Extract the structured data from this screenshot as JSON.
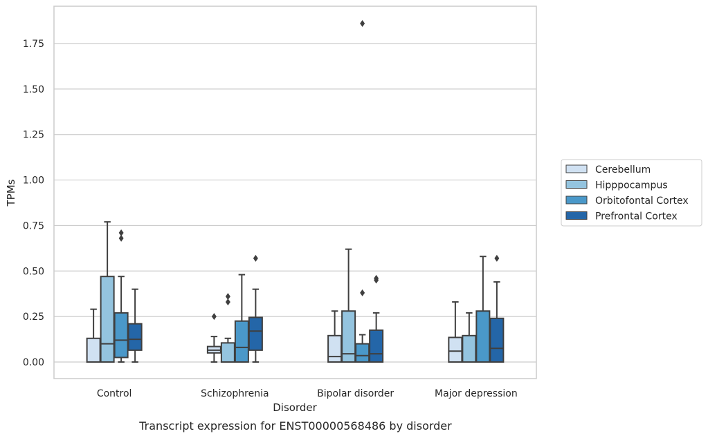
{
  "caption": "Transcript expression for ENST00000568486 by disorder",
  "chart_data": {
    "type": "box",
    "xlabel": "Disorder",
    "ylabel": "TPMs",
    "ylim": [
      -0.09,
      1.96
    ],
    "yticks": [
      0.0,
      0.25,
      0.5,
      0.75,
      1.0,
      1.25,
      1.5,
      1.75
    ],
    "ytick_labels": [
      "0.00",
      "0.25",
      "0.50",
      "0.75",
      "1.00",
      "1.25",
      "1.50",
      "1.75"
    ],
    "grid": "horizontal",
    "legend_position": "right",
    "categories": [
      "Control",
      "Schizophrenia",
      "Bipolar disorder",
      "Major depression"
    ],
    "series": [
      {
        "name": "Cerebellum",
        "color": "#d0e1f2",
        "boxes": [
          {
            "min": 0.0,
            "q1": 0.0,
            "median": 0.0,
            "q3": 0.13,
            "max": 0.29,
            "outliers": []
          },
          {
            "min": 0.0,
            "q1": 0.05,
            "median": 0.065,
            "q3": 0.085,
            "max": 0.14,
            "outliers": [
              0.25
            ]
          },
          {
            "min": 0.0,
            "q1": 0.0,
            "median": 0.03,
            "q3": 0.145,
            "max": 0.28,
            "outliers": []
          },
          {
            "min": 0.0,
            "q1": 0.0,
            "median": 0.06,
            "q3": 0.135,
            "max": 0.33,
            "outliers": []
          }
        ]
      },
      {
        "name": "Hipppocampus",
        "color": "#94c4df",
        "boxes": [
          {
            "min": 0.0,
            "q1": 0.0,
            "median": 0.1,
            "q3": 0.47,
            "max": 0.77,
            "outliers": []
          },
          {
            "min": 0.0,
            "q1": 0.0,
            "median": 0.0,
            "q3": 0.105,
            "max": 0.13,
            "outliers": [
              0.33,
              0.36
            ]
          },
          {
            "min": 0.0,
            "q1": 0.0,
            "median": 0.045,
            "q3": 0.28,
            "max": 0.62,
            "outliers": []
          },
          {
            "min": 0.0,
            "q1": 0.0,
            "median": 0.0,
            "q3": 0.145,
            "max": 0.27,
            "outliers": []
          }
        ]
      },
      {
        "name": "Orbitofontal Cortex",
        "color": "#4a98c9",
        "boxes": [
          {
            "min": 0.0,
            "q1": 0.025,
            "median": 0.12,
            "q3": 0.27,
            "max": 0.47,
            "outliers": [
              0.68,
              0.71
            ]
          },
          {
            "min": 0.0,
            "q1": 0.0,
            "median": 0.08,
            "q3": 0.225,
            "max": 0.48,
            "outliers": []
          },
          {
            "min": 0.0,
            "q1": 0.0,
            "median": 0.035,
            "q3": 0.1,
            "max": 0.15,
            "outliers": [
              0.38,
              1.86
            ]
          },
          {
            "min": 0.0,
            "q1": 0.0,
            "median": 0.0,
            "q3": 0.28,
            "max": 0.58,
            "outliers": []
          }
        ]
      },
      {
        "name": "Prefrontal Cortex",
        "color": "#2466a8",
        "boxes": [
          {
            "min": 0.0,
            "q1": 0.065,
            "median": 0.125,
            "q3": 0.21,
            "max": 0.4,
            "outliers": []
          },
          {
            "min": 0.0,
            "q1": 0.065,
            "median": 0.17,
            "q3": 0.245,
            "max": 0.4,
            "outliers": [
              0.57
            ]
          },
          {
            "min": 0.0,
            "q1": 0.0,
            "median": 0.045,
            "q3": 0.175,
            "max": 0.27,
            "outliers": [
              0.45,
              0.46
            ]
          },
          {
            "min": 0.0,
            "q1": 0.0,
            "median": 0.075,
            "q3": 0.24,
            "max": 0.44,
            "outliers": [
              0.57
            ]
          }
        ]
      }
    ]
  }
}
